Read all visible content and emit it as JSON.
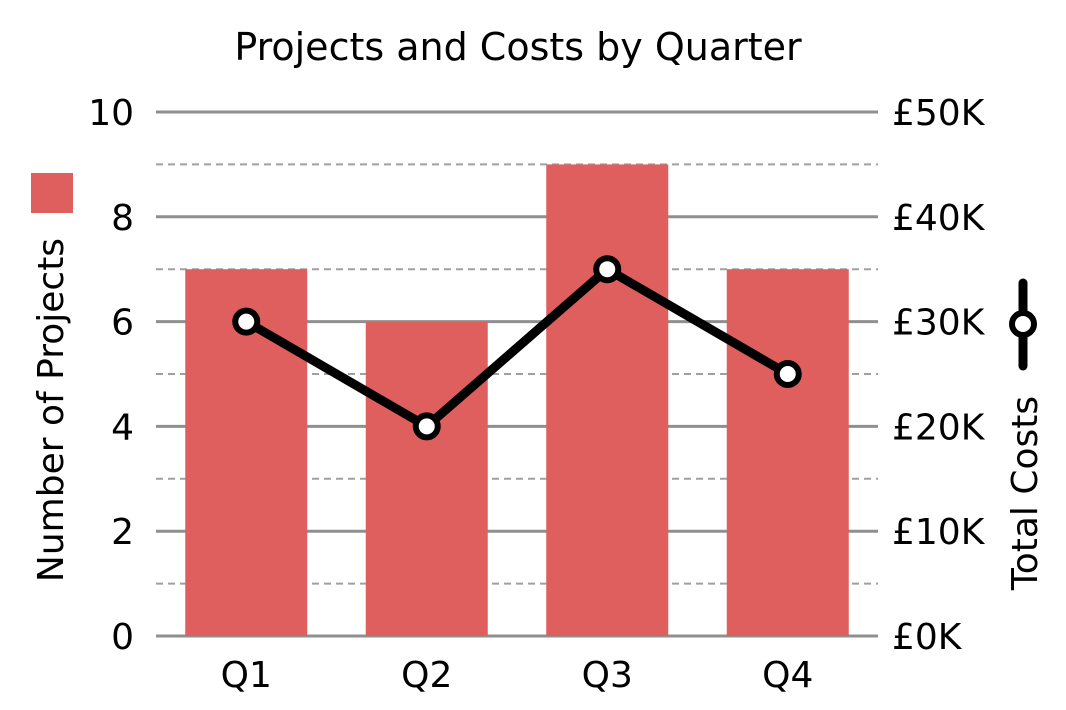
{
  "chart_data": {
    "type": "bar",
    "title": "Projects and Costs by Quarter",
    "categories": [
      "Q1",
      "Q2",
      "Q3",
      "Q4"
    ],
    "series": [
      {
        "name": "Number of Projects",
        "type": "bar",
        "axis": "left",
        "values": [
          7,
          6,
          9,
          7
        ],
        "color": "#df5f5f"
      },
      {
        "name": "Total Costs",
        "type": "line",
        "axis": "right",
        "values": [
          30000,
          20000,
          35000,
          25000
        ],
        "color": "#000000",
        "marker_fill": "#ffffff"
      }
    ],
    "y_left": {
      "label": "Number of Projects",
      "ylim": [
        0,
        10
      ],
      "major_ticks": [
        0,
        2,
        4,
        6,
        8,
        10
      ],
      "tick_labels": [
        "0",
        "2",
        "4",
        "6",
        "8",
        "10"
      ]
    },
    "y_right": {
      "label": "Total Costs",
      "ylim": [
        0,
        50000
      ],
      "major_ticks": [
        0,
        10000,
        20000,
        30000,
        40000,
        50000
      ],
      "tick_labels": [
        "£0K",
        "£10K",
        "£20K",
        "£30K",
        "£40K",
        "£50K"
      ]
    },
    "grid": {
      "major": true,
      "minor_dashed": true,
      "major_color": "#8f8f8f",
      "minor_color": "#a0a0a0"
    },
    "legend": {
      "placement": "left-and-right-axis-labels"
    }
  }
}
